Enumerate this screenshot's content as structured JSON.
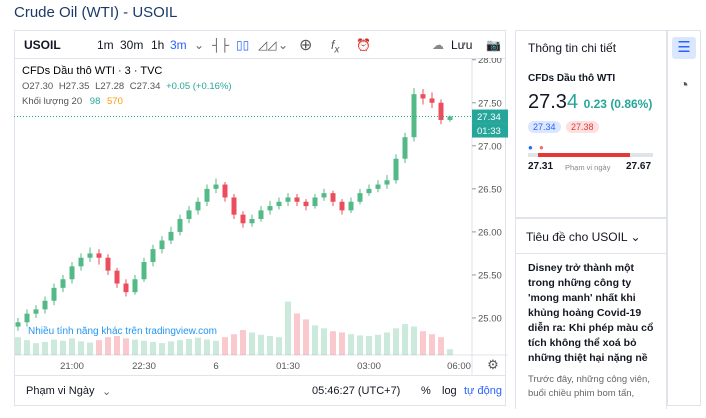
{
  "header": {
    "title": "Crude Oil (WTI) - USOIL"
  },
  "toolbar": {
    "symbol": "USOIL",
    "intervals": [
      "1m",
      "30m",
      "1h",
      "3m"
    ],
    "save": "Lưu"
  },
  "chart_data": {
    "type": "candlestick",
    "symbol_title": "CFDs Dầu thô WTI · 3 · TVC",
    "ohlc_legend": [
      "O27.30",
      "H27.35",
      "L27.28",
      "C27.34",
      "+0.05 (+0.16%)"
    ],
    "volume_legend": {
      "label": "Khối lượng 20",
      "values": [
        "98",
        "570"
      ]
    },
    "watermark": "Nhiều tính năng khác trên tradingview.com",
    "categories": [
      null,
      null,
      null,
      null,
      null,
      null,
      "21:00",
      null,
      null,
      null,
      null,
      null,
      null,
      null,
      "22:30",
      null,
      null,
      null,
      null,
      null,
      null,
      null,
      "6",
      null,
      null,
      null,
      null,
      null,
      null,
      null,
      "01:30",
      null,
      null,
      null,
      null,
      null,
      null,
      null,
      null,
      "03:00",
      null,
      null,
      null,
      null,
      null,
      null,
      null,
      null,
      null,
      "06:00"
    ],
    "open": [
      24.9,
      24.95,
      25.05,
      25.1,
      25.2,
      25.35,
      25.45,
      25.6,
      25.7,
      25.75,
      25.7,
      25.55,
      25.4,
      25.3,
      25.45,
      25.65,
      25.8,
      25.9,
      26.0,
      26.15,
      26.25,
      26.35,
      26.5,
      26.55,
      26.4,
      26.2,
      26.1,
      26.15,
      26.25,
      26.3,
      26.35,
      26.4,
      26.35,
      26.3,
      26.4,
      26.45,
      26.35,
      26.25,
      26.35,
      26.45,
      26.5,
      26.55,
      26.6,
      26.85,
      27.1,
      27.6,
      27.55,
      27.5,
      27.3,
      null
    ],
    "high": [
      25.0,
      25.1,
      25.15,
      25.25,
      25.4,
      25.5,
      25.65,
      25.75,
      25.82,
      25.8,
      25.74,
      25.58,
      25.45,
      25.5,
      25.7,
      25.85,
      25.95,
      26.06,
      26.2,
      26.3,
      26.4,
      26.55,
      26.62,
      26.58,
      26.44,
      26.24,
      26.2,
      26.3,
      26.36,
      26.4,
      26.45,
      26.44,
      26.38,
      26.44,
      26.5,
      26.48,
      26.38,
      26.4,
      26.5,
      26.55,
      26.6,
      26.66,
      26.9,
      27.15,
      27.67,
      27.66,
      27.62,
      27.54,
      27.35,
      null
    ],
    "low": [
      24.85,
      24.9,
      25.0,
      25.05,
      25.15,
      25.3,
      25.4,
      25.55,
      25.65,
      25.62,
      25.5,
      25.35,
      25.25,
      25.27,
      25.42,
      25.6,
      25.75,
      25.86,
      25.96,
      26.1,
      26.2,
      26.3,
      26.45,
      26.35,
      26.15,
      26.05,
      26.06,
      26.12,
      26.2,
      26.26,
      26.3,
      26.3,
      26.25,
      26.27,
      26.36,
      26.3,
      26.2,
      26.22,
      26.32,
      26.42,
      26.46,
      26.5,
      26.56,
      26.8,
      27.05,
      27.48,
      27.44,
      27.25,
      27.28,
      null
    ],
    "close": [
      24.95,
      25.05,
      25.1,
      25.2,
      25.35,
      25.45,
      25.6,
      25.7,
      25.75,
      25.7,
      25.55,
      25.4,
      25.3,
      25.45,
      25.65,
      25.8,
      25.9,
      26.0,
      26.15,
      26.25,
      26.35,
      26.5,
      26.55,
      26.4,
      26.2,
      26.1,
      26.15,
      26.25,
      26.3,
      26.35,
      26.4,
      26.35,
      26.3,
      26.4,
      26.45,
      26.35,
      26.25,
      26.35,
      26.45,
      26.5,
      26.55,
      26.6,
      26.85,
      27.1,
      27.6,
      27.55,
      27.5,
      27.3,
      27.34,
      null
    ],
    "volume": [
      300,
      250,
      200,
      220,
      260,
      240,
      280,
      230,
      210,
      250,
      300,
      320,
      280,
      260,
      240,
      220,
      200,
      230,
      250,
      270,
      290,
      260,
      240,
      300,
      350,
      420,
      380,
      340,
      320,
      300,
      900,
      700,
      600,
      500,
      450,
      400,
      380,
      350,
      330,
      320,
      340,
      380,
      450,
      520,
      480,
      400,
      350,
      300,
      98,
      null
    ],
    "vlim": [
      0,
      5000
    ],
    "up_color": "#53b987",
    "down_color": "#eb4d5c",
    "ylim": [
      24.57,
      28.02
    ],
    "yticks": [
      {
        "value": 25,
        "label": "25.00"
      },
      {
        "value": 25.5,
        "label": "25.50"
      },
      {
        "value": 26,
        "label": "26.00"
      },
      {
        "value": 26.5,
        "label": "26.50"
      },
      {
        "value": 27,
        "label": "27.00"
      },
      {
        "value": 27.5,
        "label": "27.50"
      },
      {
        "value": 28,
        "label": "28.00"
      }
    ],
    "last_price": {
      "value": 27.34,
      "label": "27.34"
    },
    "countdown": "01:33"
  },
  "bottom_bar": {
    "range": "Phạm vi Ngày",
    "time": "05:46:27 (UTC+7)",
    "percent": "%",
    "log": "log",
    "auto": "tự động"
  },
  "details": {
    "heading": "Thông tin chi tiết",
    "name": "CFDs Dầu thô WTI",
    "price_main": "27.3",
    "price_digit": "4",
    "change": "0.23 (0.86%)",
    "bid": "27.34",
    "ask": "27.38",
    "range_low": "27.31",
    "range_label": "Phạm vi ngày",
    "range_high": "27.67"
  },
  "news": {
    "heading": "Tiêu đề cho USOIL",
    "headline": "Disney trở thành một trong những công ty 'mong manh' nhất khi khủng hoảng Covid-19 diễn ra: Khi phép màu cổ tích không thể xoá bỏ những thiệt hại nặng nề",
    "snippet": "Trước đây, những công viên, buổi chiều phim bom tấn,"
  }
}
